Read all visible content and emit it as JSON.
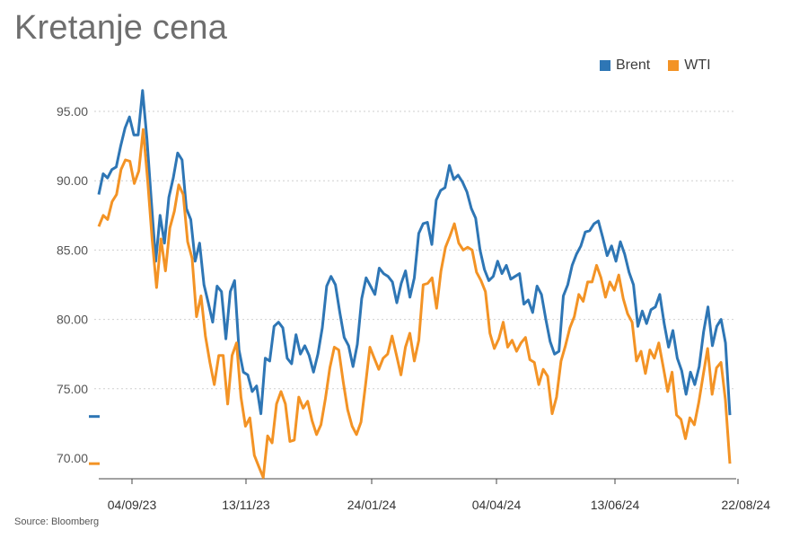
{
  "title": "Kretanje cena",
  "source": "Source: Bloomberg",
  "legend": [
    {
      "label": "Brent",
      "color": "#2e76b5"
    },
    {
      "label": "WTI",
      "color": "#f39325"
    }
  ],
  "chart_data": {
    "type": "line",
    "title": "Kretanje cena",
    "xlabel": "",
    "ylabel": "",
    "ylim": [
      69,
      97
    ],
    "yticks": [
      "95.00",
      "90.00",
      "85.00",
      "80.00",
      "75.00",
      "70.00"
    ],
    "ytick_values": [
      95,
      90,
      85,
      80,
      75,
      70
    ],
    "xticks": [
      "04/09/23",
      "13/11/23",
      "24/01/24",
      "04/04/24",
      "13/06/24",
      "22/08/24"
    ],
    "grid": true,
    "legend_position": "top-right",
    "last_value_markers": {
      "Brent": 73.0,
      "WTI": 69.6
    },
    "series": [
      {
        "name": "Brent",
        "color": "#2e76b5",
        "values": [
          89.0,
          90.5,
          90.2,
          90.8,
          91.0,
          92.5,
          93.8,
          94.6,
          93.3,
          93.3,
          96.5,
          93.0,
          88.5,
          84.2,
          87.5,
          85.5,
          88.8,
          90.2,
          92.0,
          91.5,
          88.0,
          87.2,
          84.2,
          85.5,
          82.5,
          81.2,
          79.8,
          82.4,
          82.0,
          78.6,
          82.0,
          82.8,
          77.8,
          76.2,
          76.0,
          74.8,
          75.2,
          73.2,
          77.2,
          77.0,
          79.5,
          79.8,
          79.4,
          77.2,
          76.8,
          78.9,
          77.5,
          78.1,
          77.4,
          76.2,
          77.5,
          79.4,
          82.4,
          83.1,
          82.5,
          80.5,
          78.7,
          78.1,
          76.6,
          78.2,
          81.5,
          83.0,
          82.4,
          81.8,
          83.7,
          83.3,
          83.1,
          82.7,
          81.2,
          82.6,
          83.5,
          81.6,
          83.0,
          86.2,
          86.9,
          87.0,
          85.4,
          88.6,
          89.3,
          89.5,
          91.1,
          90.1,
          90.4,
          89.9,
          89.2,
          88.0,
          87.3,
          85.0,
          83.6,
          82.8,
          83.1,
          84.2,
          83.3,
          83.9,
          82.9,
          83.1,
          83.3,
          81.1,
          81.4,
          80.5,
          82.4,
          81.8,
          80.0,
          78.4,
          77.5,
          77.7,
          81.7,
          82.5,
          83.9,
          84.7,
          85.3,
          86.3,
          86.4,
          86.9,
          87.1,
          85.9,
          84.6,
          85.3,
          84.2,
          85.6,
          84.7,
          83.4,
          82.5,
          79.5,
          80.6,
          79.7,
          80.7,
          80.9,
          81.8,
          79.7,
          78.0,
          79.2,
          77.2,
          76.3,
          74.6,
          76.2,
          75.3,
          76.6,
          79.1,
          80.9,
          78.1,
          79.5,
          80.0,
          78.3,
          73.1
        ]
      },
      {
        "name": "WTI",
        "color": "#f39325",
        "values": [
          86.7,
          87.5,
          87.2,
          88.5,
          89.0,
          90.8,
          91.5,
          91.4,
          89.8,
          90.7,
          93.7,
          90.0,
          85.8,
          82.3,
          85.8,
          83.5,
          86.6,
          87.8,
          89.7,
          89.0,
          85.6,
          84.4,
          80.2,
          81.7,
          78.8,
          76.9,
          75.3,
          77.4,
          77.4,
          73.9,
          77.4,
          78.3,
          74.4,
          72.3,
          72.9,
          70.2,
          69.4,
          68.6,
          71.6,
          71.1,
          73.9,
          74.8,
          73.9,
          71.2,
          71.3,
          74.4,
          73.6,
          74.1,
          72.7,
          71.7,
          72.4,
          74.3,
          76.5,
          78.0,
          77.8,
          75.5,
          73.5,
          72.3,
          71.7,
          72.6,
          75.2,
          78.0,
          77.2,
          76.4,
          77.2,
          77.5,
          78.8,
          77.4,
          76.0,
          78.0,
          79.0,
          77.0,
          78.5,
          82.5,
          82.6,
          83.0,
          80.8,
          83.5,
          85.2,
          86.0,
          86.9,
          85.5,
          85.0,
          85.2,
          85.0,
          83.4,
          82.8,
          82.0,
          79.0,
          77.9,
          78.6,
          79.8,
          78.0,
          78.5,
          77.7,
          78.3,
          78.7,
          77.1,
          76.9,
          75.3,
          76.4,
          75.9,
          73.2,
          74.4,
          77.0,
          78.1,
          79.4,
          80.2,
          81.8,
          81.3,
          82.7,
          82.7,
          83.9,
          83.0,
          81.6,
          82.7,
          82.1,
          83.2,
          81.5,
          80.4,
          79.8,
          77.0,
          77.7,
          76.1,
          77.8,
          77.2,
          78.3,
          76.6,
          74.8,
          76.2,
          73.1,
          72.8,
          71.4,
          72.9,
          72.4,
          74.0,
          76.0,
          77.9,
          74.6,
          76.5,
          76.9,
          74.2,
          69.6
        ]
      }
    ]
  }
}
